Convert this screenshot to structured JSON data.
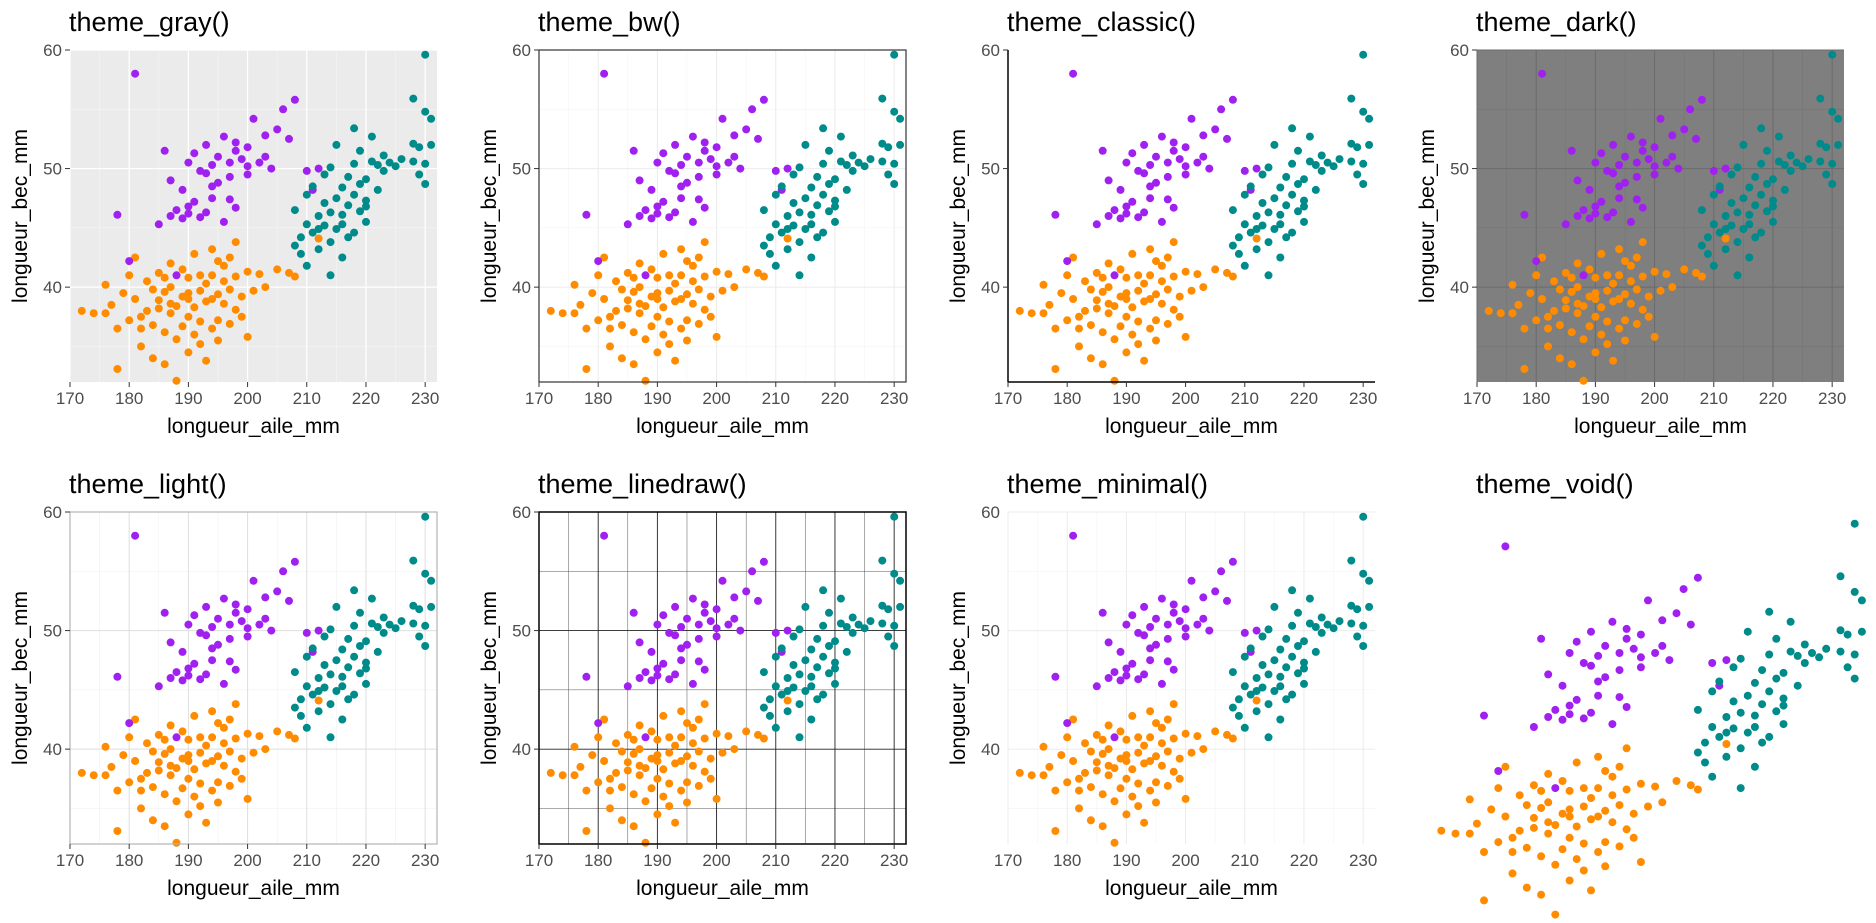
{
  "colors": {
    "Adelie": "#ff8c00",
    "Chinstrap": "#a020f0",
    "Gentoo": "#008b8b"
  },
  "panels": [
    {
      "title": "theme_gray()",
      "theme": "gray",
      "xlabel": "longueur_aile_mm",
      "ylabel": "longueur_bec_mm"
    },
    {
      "title": "theme_bw()",
      "theme": "bw",
      "xlabel": "longueur_aile_mm",
      "ylabel": "longueur_bec_mm"
    },
    {
      "title": "theme_classic()",
      "theme": "classic",
      "xlabel": "longueur_aile_mm",
      "ylabel": "longueur_bec_mm"
    },
    {
      "title": "theme_dark()",
      "theme": "dark",
      "xlabel": "longueur_aile_mm",
      "ylabel": "longueur_bec_mm"
    },
    {
      "title": "theme_light()",
      "theme": "light",
      "xlabel": "longueur_aile_mm",
      "ylabel": "longueur_bec_mm"
    },
    {
      "title": "theme_linedraw()",
      "theme": "linedraw",
      "xlabel": "longueur_aile_mm",
      "ylabel": "longueur_bec_mm"
    },
    {
      "title": "theme_minimal()",
      "theme": "minimal",
      "xlabel": "longueur_aile_mm",
      "ylabel": "longueur_bec_mm"
    },
    {
      "title": "theme_void()",
      "theme": "void",
      "xlabel": "",
      "ylabel": ""
    }
  ],
  "chart_data": {
    "type": "scatter",
    "xlabel": "longueur_aile_mm",
    "ylabel": "longueur_bec_mm",
    "xlim": [
      170,
      232
    ],
    "ylim": [
      32,
      60
    ],
    "xticks": [
      170,
      180,
      190,
      200,
      210,
      220,
      230
    ],
    "yticks": [
      40,
      50,
      60
    ],
    "series": [
      {
        "color": "#ff8c00",
        "points": [
          [
            172,
            38
          ],
          [
            174,
            37.8
          ],
          [
            176,
            40.2
          ],
          [
            177,
            38.5
          ],
          [
            178,
            36.5
          ],
          [
            178,
            33.1
          ],
          [
            179,
            39.5
          ],
          [
            180,
            37.2
          ],
          [
            180,
            41
          ],
          [
            181,
            42.5
          ],
          [
            181,
            39
          ],
          [
            182,
            37.5
          ],
          [
            182,
            35
          ],
          [
            183,
            38
          ],
          [
            183,
            40.5
          ],
          [
            184,
            36.8
          ],
          [
            184,
            34
          ],
          [
            185,
            38.9
          ],
          [
            185,
            41.2
          ],
          [
            186,
            39.6
          ],
          [
            186,
            36.2
          ],
          [
            186,
            33.5
          ],
          [
            187,
            37.8
          ],
          [
            187,
            40
          ],
          [
            187,
            42
          ],
          [
            188,
            35.6
          ],
          [
            188,
            38.4
          ],
          [
            188,
            32.1
          ],
          [
            189,
            39.2
          ],
          [
            189,
            36.7
          ],
          [
            189,
            41.5
          ],
          [
            190,
            37.5
          ],
          [
            190,
            34.5
          ],
          [
            190,
            40.8
          ],
          [
            190,
            39
          ],
          [
            191,
            36
          ],
          [
            191,
            38.3
          ],
          [
            191,
            42.8
          ],
          [
            192,
            35.2
          ],
          [
            192,
            39.7
          ],
          [
            192,
            37.1
          ],
          [
            193,
            40.3
          ],
          [
            193,
            33.8
          ],
          [
            193,
            38.8
          ],
          [
            194,
            36.5
          ],
          [
            194,
            41
          ],
          [
            194,
            43.2
          ],
          [
            195,
            39.4
          ],
          [
            195,
            37.2
          ],
          [
            195,
            35.5
          ],
          [
            196,
            41.8
          ],
          [
            196,
            38.6
          ],
          [
            196,
            40.5
          ],
          [
            197,
            42.5
          ],
          [
            197,
            36.9
          ],
          [
            197,
            39.8
          ],
          [
            198,
            40.9
          ],
          [
            198,
            43.8
          ],
          [
            198,
            38.1
          ],
          [
            199,
            37.5
          ],
          [
            200,
            41.3
          ],
          [
            200,
            35.8
          ],
          [
            201,
            39.7
          ],
          [
            202,
            41.1
          ],
          [
            203,
            40
          ],
          [
            205,
            41.5
          ],
          [
            207,
            41.2
          ],
          [
            208,
            40.9
          ],
          [
            212,
            44.1
          ],
          [
            176,
            37.8
          ],
          [
            185,
            38.2
          ],
          [
            190,
            39.5
          ],
          [
            192,
            41
          ],
          [
            187,
            38.6
          ],
          [
            194,
            39
          ],
          [
            186,
            40.8
          ],
          [
            182,
            36.5
          ],
          [
            184,
            39.8
          ],
          [
            199,
            39.2
          ],
          [
            195,
            42.2
          ]
        ]
      },
      {
        "color": "#a020f0",
        "points": [
          [
            178,
            46.1
          ],
          [
            181,
            58
          ],
          [
            186,
            51.5
          ],
          [
            187,
            46
          ],
          [
            187,
            49
          ],
          [
            188,
            46.5
          ],
          [
            189,
            45.8
          ],
          [
            189,
            48.2
          ],
          [
            190,
            46.2
          ],
          [
            190,
            50.5
          ],
          [
            191,
            47.2
          ],
          [
            191,
            51.3
          ],
          [
            192,
            45.9
          ],
          [
            192,
            49.8
          ],
          [
            193,
            52
          ],
          [
            193,
            46.3
          ],
          [
            194,
            50.3
          ],
          [
            194,
            47.5
          ],
          [
            195,
            51
          ],
          [
            195,
            48.8
          ],
          [
            196,
            52.7
          ],
          [
            196,
            45.5
          ],
          [
            197,
            50.5
          ],
          [
            197,
            49.3
          ],
          [
            198,
            51.5
          ],
          [
            198,
            46.7
          ],
          [
            199,
            50.8
          ],
          [
            200,
            49.5
          ],
          [
            200,
            51.8
          ],
          [
            201,
            54.2
          ],
          [
            202,
            50.5
          ],
          [
            203,
            52.8
          ],
          [
            204,
            50
          ],
          [
            205,
            53.3
          ],
          [
            206,
            55
          ],
          [
            207,
            52.5
          ],
          [
            208,
            55.8
          ],
          [
            210,
            49.8
          ],
          [
            212,
            50
          ],
          [
            211,
            48.2
          ],
          [
            200,
            50.2
          ],
          [
            194,
            48.5
          ],
          [
            197,
            47.4
          ],
          [
            190,
            46.8
          ],
          [
            185,
            45.3
          ],
          [
            193,
            49.6
          ],
          [
            198,
            52.2
          ],
          [
            203,
            51
          ],
          [
            180,
            42.2
          ],
          [
            188,
            41
          ]
        ]
      },
      {
        "color": "#008b8b",
        "points": [
          [
            208,
            43.5
          ],
          [
            208,
            46.5
          ],
          [
            209,
            44.2
          ],
          [
            209,
            42.8
          ],
          [
            210,
            45.3
          ],
          [
            210,
            47.8
          ],
          [
            211,
            44.6
          ],
          [
            211,
            48.5
          ],
          [
            212,
            46
          ],
          [
            212,
            43.2
          ],
          [
            213,
            47.1
          ],
          [
            213,
            45.2
          ],
          [
            213,
            49.5
          ],
          [
            214,
            46.3
          ],
          [
            214,
            43.8
          ],
          [
            214,
            50.1
          ],
          [
            215,
            47.5
          ],
          [
            215,
            44.9
          ],
          [
            215,
            52
          ],
          [
            216,
            48.4
          ],
          [
            216,
            46.1
          ],
          [
            216,
            42.5
          ],
          [
            217,
            49.3
          ],
          [
            217,
            46.9
          ],
          [
            217,
            44.2
          ],
          [
            218,
            50.4
          ],
          [
            218,
            47.8
          ],
          [
            218,
            53.4
          ],
          [
            219,
            48.7
          ],
          [
            219,
            46.4
          ],
          [
            219,
            51.5
          ],
          [
            220,
            49.1
          ],
          [
            220,
            45.5
          ],
          [
            220,
            47.3
          ],
          [
            221,
            50.6
          ],
          [
            221,
            52.7
          ],
          [
            222,
            48.2
          ],
          [
            222,
            50.3
          ],
          [
            223,
            49.8
          ],
          [
            223,
            51.1
          ],
          [
            224,
            50.5
          ],
          [
            225,
            50.2
          ],
          [
            226,
            50.8
          ],
          [
            228,
            55.9
          ],
          [
            228,
            52.1
          ],
          [
            229,
            49.5
          ],
          [
            229,
            51.8
          ],
          [
            230,
            59.6
          ],
          [
            230,
            54.8
          ],
          [
            230,
            50.4
          ],
          [
            231,
            54.2
          ],
          [
            231,
            52
          ],
          [
            230,
            48.7
          ],
          [
            228,
            50.6
          ],
          [
            214,
            41
          ],
          [
            210,
            41.8
          ],
          [
            216,
            45.3
          ],
          [
            218,
            44.6
          ],
          [
            212,
            44.9
          ],
          [
            220,
            46.8
          ]
        ]
      }
    ]
  }
}
